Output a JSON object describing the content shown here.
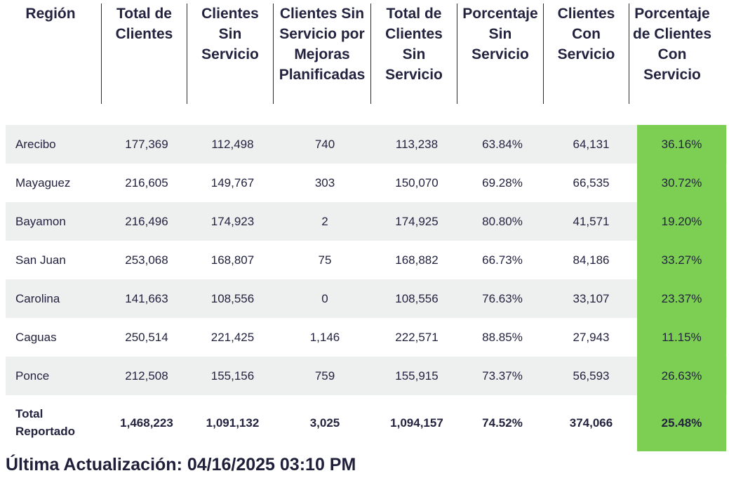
{
  "headers": [
    "Región",
    "Total de Clientes",
    "Clientes Sin Servicio",
    "Clientes Sin Servicio por Mejoras Planificadas",
    "Total de Clientes Sin Servicio",
    "Porcentaje Sin Servicio",
    "Clientes Con Servicio",
    "Porcentaje de Clientes Con Servicio"
  ],
  "rows": [
    [
      "Arecibo",
      "177,369",
      "112,498",
      "740",
      "113,238",
      "63.84%",
      "64,131",
      "36.16%"
    ],
    [
      "Mayaguez",
      "216,605",
      "149,767",
      "303",
      "150,070",
      "69.28%",
      "66,535",
      "30.72%"
    ],
    [
      "Bayamon",
      "216,496",
      "174,923",
      "2",
      "174,925",
      "80.80%",
      "41,571",
      "19.20%"
    ],
    [
      "San Juan",
      "253,068",
      "168,807",
      "75",
      "168,882",
      "66.73%",
      "84,186",
      "33.27%"
    ],
    [
      "Carolina",
      "141,663",
      "108,556",
      "0",
      "108,556",
      "76.63%",
      "33,107",
      "23.37%"
    ],
    [
      "Caguas",
      "250,514",
      "221,425",
      "1,146",
      "222,571",
      "88.85%",
      "27,943",
      "11.15%"
    ],
    [
      "Ponce",
      "212,508",
      "155,156",
      "759",
      "155,915",
      "73.37%",
      "56,593",
      "26.63%"
    ]
  ],
  "total": {
    "label_line1": "Total",
    "label_line2": "Reportado",
    "values": [
      "1,468,223",
      "1,091,132",
      "3,025",
      "1,094,157",
      "74.52%",
      "374,066",
      "25.48%"
    ]
  },
  "last_updated": "Última Actualización: 04/16/2025 03:10 PM",
  "colors": {
    "highlight": "#7ccf52",
    "row_shade": "#eef0f0"
  }
}
